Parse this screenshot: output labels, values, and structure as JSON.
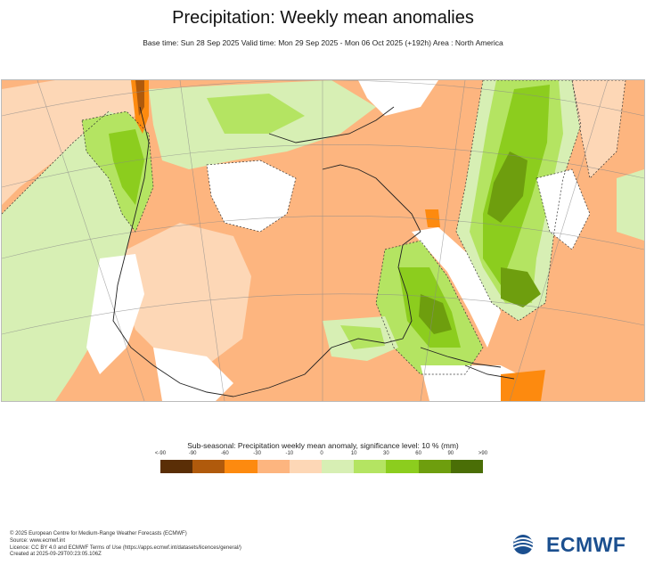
{
  "header": {
    "title": "Precipitation: Weekly mean anomalies",
    "subtitle": "Base time: Sun 28 Sep 2025 Valid time: Mon 29 Sep 2025 - Mon 06 Oct 2025 (+192h) Area : North America"
  },
  "legend": {
    "title": "Sub-seasonal: Precipitation weekly mean anomaly, significance level: 10 % (mm)",
    "ticks": [
      "<-90",
      "-90",
      "-60",
      "-30",
      "-10",
      "0",
      "10",
      "30",
      "60",
      "90",
      ">90"
    ],
    "colors": [
      "#5a2e06",
      "#b05a0c",
      "#fd8a0f",
      "#fdb57f",
      "#fdd7b6",
      "#d7efb4",
      "#b4e462",
      "#8ccd1e",
      "#6e9e0e",
      "#4a6e06"
    ]
  },
  "map": {
    "colors": {
      "ocean_dry": "#fdb57f",
      "light_dry": "#fdd7b6",
      "neutral": "#ffffff",
      "light_wet": "#d7efb4",
      "wet": "#b4e462",
      "wetter": "#8ccd1e",
      "wettest": "#6e9e0e",
      "extreme_wet": "#4a6e06",
      "strong_dry": "#fd8a0f",
      "extreme_dry": "#b05a0c"
    }
  },
  "footer": {
    "lines": [
      "© 2025 European Centre for Medium-Range Weather Forecasts (ECMWF)",
      "Source: www.ecmwf.int",
      "Licence: CC BY 4.0 and ECMWF Terms of Use (https://apps.ecmwf.int/datasets/licences/general/)",
      "Created at 2025-09-29T00:23:05.106Z"
    ]
  },
  "logo": {
    "text": "ECMWF",
    "color": "#1b4f8f",
    "icon": "ecmwf-logo-icon"
  }
}
